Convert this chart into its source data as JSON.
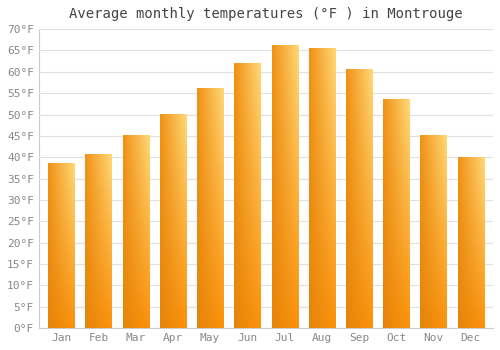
{
  "title": "Average monthly temperatures (°F ) in Montrouge",
  "months": [
    "Jan",
    "Feb",
    "Mar",
    "Apr",
    "May",
    "Jun",
    "Jul",
    "Aug",
    "Sep",
    "Oct",
    "Nov",
    "Dec"
  ],
  "values": [
    38.5,
    40.5,
    45.0,
    50.0,
    56.0,
    62.0,
    66.0,
    65.5,
    60.5,
    53.5,
    45.0,
    40.0
  ],
  "ylim": [
    0,
    70
  ],
  "yticks": [
    0,
    5,
    10,
    15,
    20,
    25,
    30,
    35,
    40,
    45,
    50,
    55,
    60,
    65,
    70
  ],
  "bar_color_left": "#F5A623",
  "bar_color_right": "#FFD060",
  "bar_color_bottom": "#E8890A",
  "background_color": "#FFFFFF",
  "grid_color": "#E0E0E0",
  "title_fontsize": 10,
  "tick_fontsize": 8,
  "title_font": "monospace",
  "tick_font": "monospace"
}
